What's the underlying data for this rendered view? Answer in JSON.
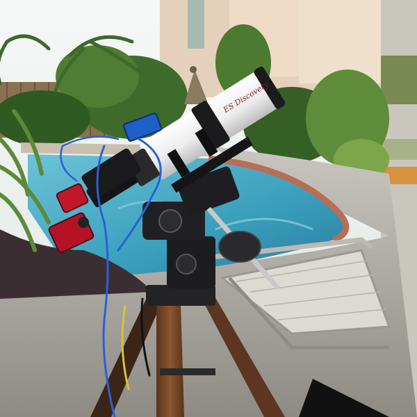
{
  "scene": {
    "brand_logo": "ES Discovery"
  },
  "palette": {
    "sky": "#eef2ef",
    "house_wall": "#e8d3bd",
    "pool_water": "#4aa9c3",
    "deck": "#b9b6ad",
    "coping_brick": "#b86e55",
    "tube_white": "#f4f4f4",
    "mount_black": "#1f1f22",
    "tripod_wood": "#7b4b2a",
    "camera_red": "#c0172b",
    "cable_blue": "#2b5fd9"
  },
  "icons": [
    "telescope-icon",
    "camera-icon",
    "tripod-icon",
    "palm-tree-icon"
  ]
}
